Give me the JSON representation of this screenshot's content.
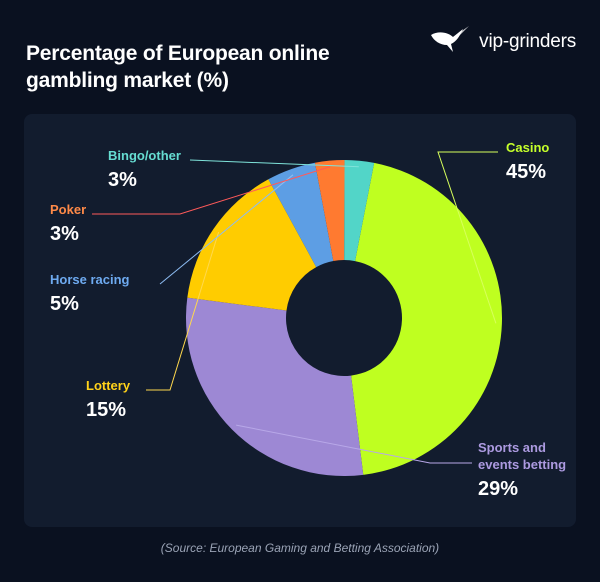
{
  "brand": {
    "name": "vip-grinders",
    "icon": "bird-logo-icon"
  },
  "chart_data": {
    "type": "pie",
    "title": "Percentage of European online gambling market (%)",
    "donut": true,
    "categories": [
      "Casino",
      "Sports and events betting",
      "Lottery",
      "Horse racing",
      "Poker",
      "Bingo/other"
    ],
    "values": [
      45,
      29,
      15,
      5,
      3,
      3
    ],
    "value_labels": [
      "45%",
      "29%",
      "15%",
      "5%",
      "3%",
      "3%"
    ],
    "colors": [
      "#bfff20",
      "#9d88d4",
      "#ffcc00",
      "#5d9ee4",
      "#ff7a30",
      "#52d5c8"
    ],
    "label_colors": [
      "#c5ff2a",
      "#ac9ae0",
      "#ffd21a",
      "#6eaaf0",
      "#ff8a48",
      "#66ddd2"
    ],
    "leader_colors": [
      "#d7ff5c",
      "#b8a8e8",
      "#ffd84d",
      "#8dbcf2",
      "#ff5a5a",
      "#7fe3da"
    ]
  },
  "source": "(Source: European Gaming and Betting Association)"
}
